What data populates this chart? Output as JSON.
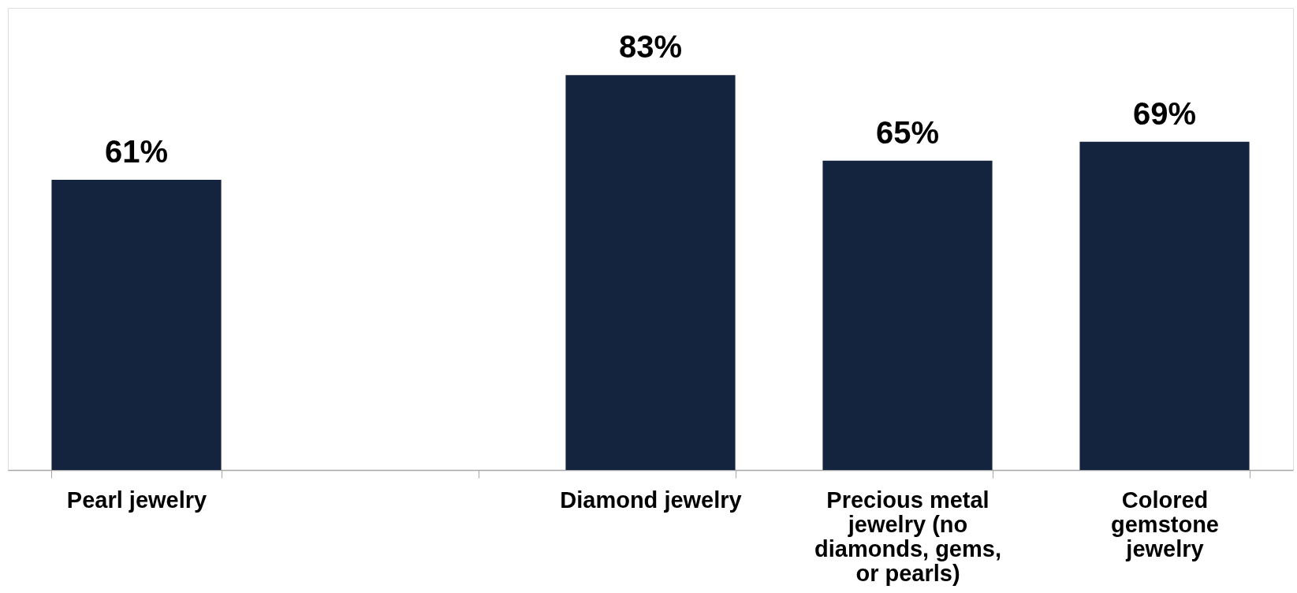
{
  "chart_data": {
    "type": "bar",
    "categories": [
      "Pearl jewelry",
      null,
      "Diamond jewelry",
      "Precious metal jewelry (no diamonds, gems, or pearls)",
      "Colored gemstone jewelry"
    ],
    "values": [
      61,
      null,
      83,
      65,
      69
    ],
    "value_labels": [
      "61%",
      null,
      "83%",
      "65%",
      "69%"
    ],
    "color": "#14243f"
  }
}
